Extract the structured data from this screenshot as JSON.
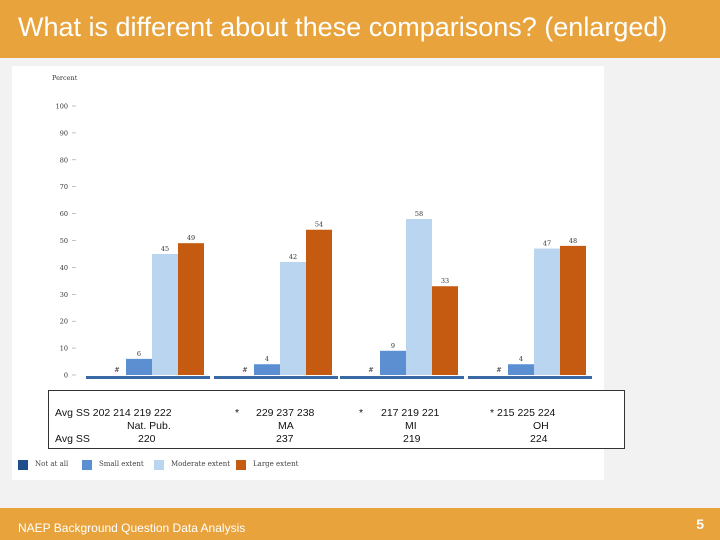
{
  "slide": {
    "title": "What is different about these comparisons? (enlarged)",
    "footer": "NAEP Background Question Data Analysis",
    "page_number": "5"
  },
  "overlay": {
    "row1": [
      {
        "text": "Avg SS  202   214    219    222"
      },
      {
        "text": "*"
      },
      {
        "text": "229   237   238"
      },
      {
        "text": "*"
      },
      {
        "text": "217   219   221"
      },
      {
        "text": "*  215     225   224"
      }
    ],
    "row2": [
      {
        "text": "Nat. Pub."
      },
      {
        "text": "MA"
      },
      {
        "text": "MI"
      },
      {
        "text": "OH"
      }
    ],
    "row3": [
      {
        "text": "Avg SS"
      },
      {
        "text": "220"
      },
      {
        "text": "237"
      },
      {
        "text": "219"
      },
      {
        "text": "224"
      }
    ]
  },
  "colors": {
    "not_at_all": "#1f4e8c",
    "small": "#5b8fd1",
    "moderate": "#b9d5ef",
    "large": "#c55a11",
    "header": "#e8a33c"
  },
  "chart_data": {
    "type": "bar",
    "ylabel": "Percent",
    "ylim": [
      0,
      100
    ],
    "yticks": [
      0,
      10,
      20,
      30,
      40,
      50,
      60,
      70,
      80,
      90,
      100
    ],
    "categories": [
      "Nat. Pub.",
      "MA",
      "MI",
      "OH"
    ],
    "series": [
      {
        "name": "Not at all",
        "values": [
          0,
          0,
          0,
          0
        ],
        "labels": [
          "#",
          "#",
          "#",
          "#"
        ]
      },
      {
        "name": "Small extent",
        "values": [
          6,
          4,
          9,
          4
        ],
        "labels": [
          "6",
          "4",
          "9",
          "4"
        ]
      },
      {
        "name": "Moderate extent",
        "values": [
          45,
          42,
          58,
          47
        ],
        "labels": [
          "45",
          "42",
          "58",
          "47"
        ]
      },
      {
        "name": "Large extent",
        "values": [
          49,
          54,
          33,
          48
        ],
        "labels": [
          "49",
          "54",
          "33",
          "48"
        ]
      }
    ],
    "grid": false,
    "legend_position": "bottom"
  }
}
